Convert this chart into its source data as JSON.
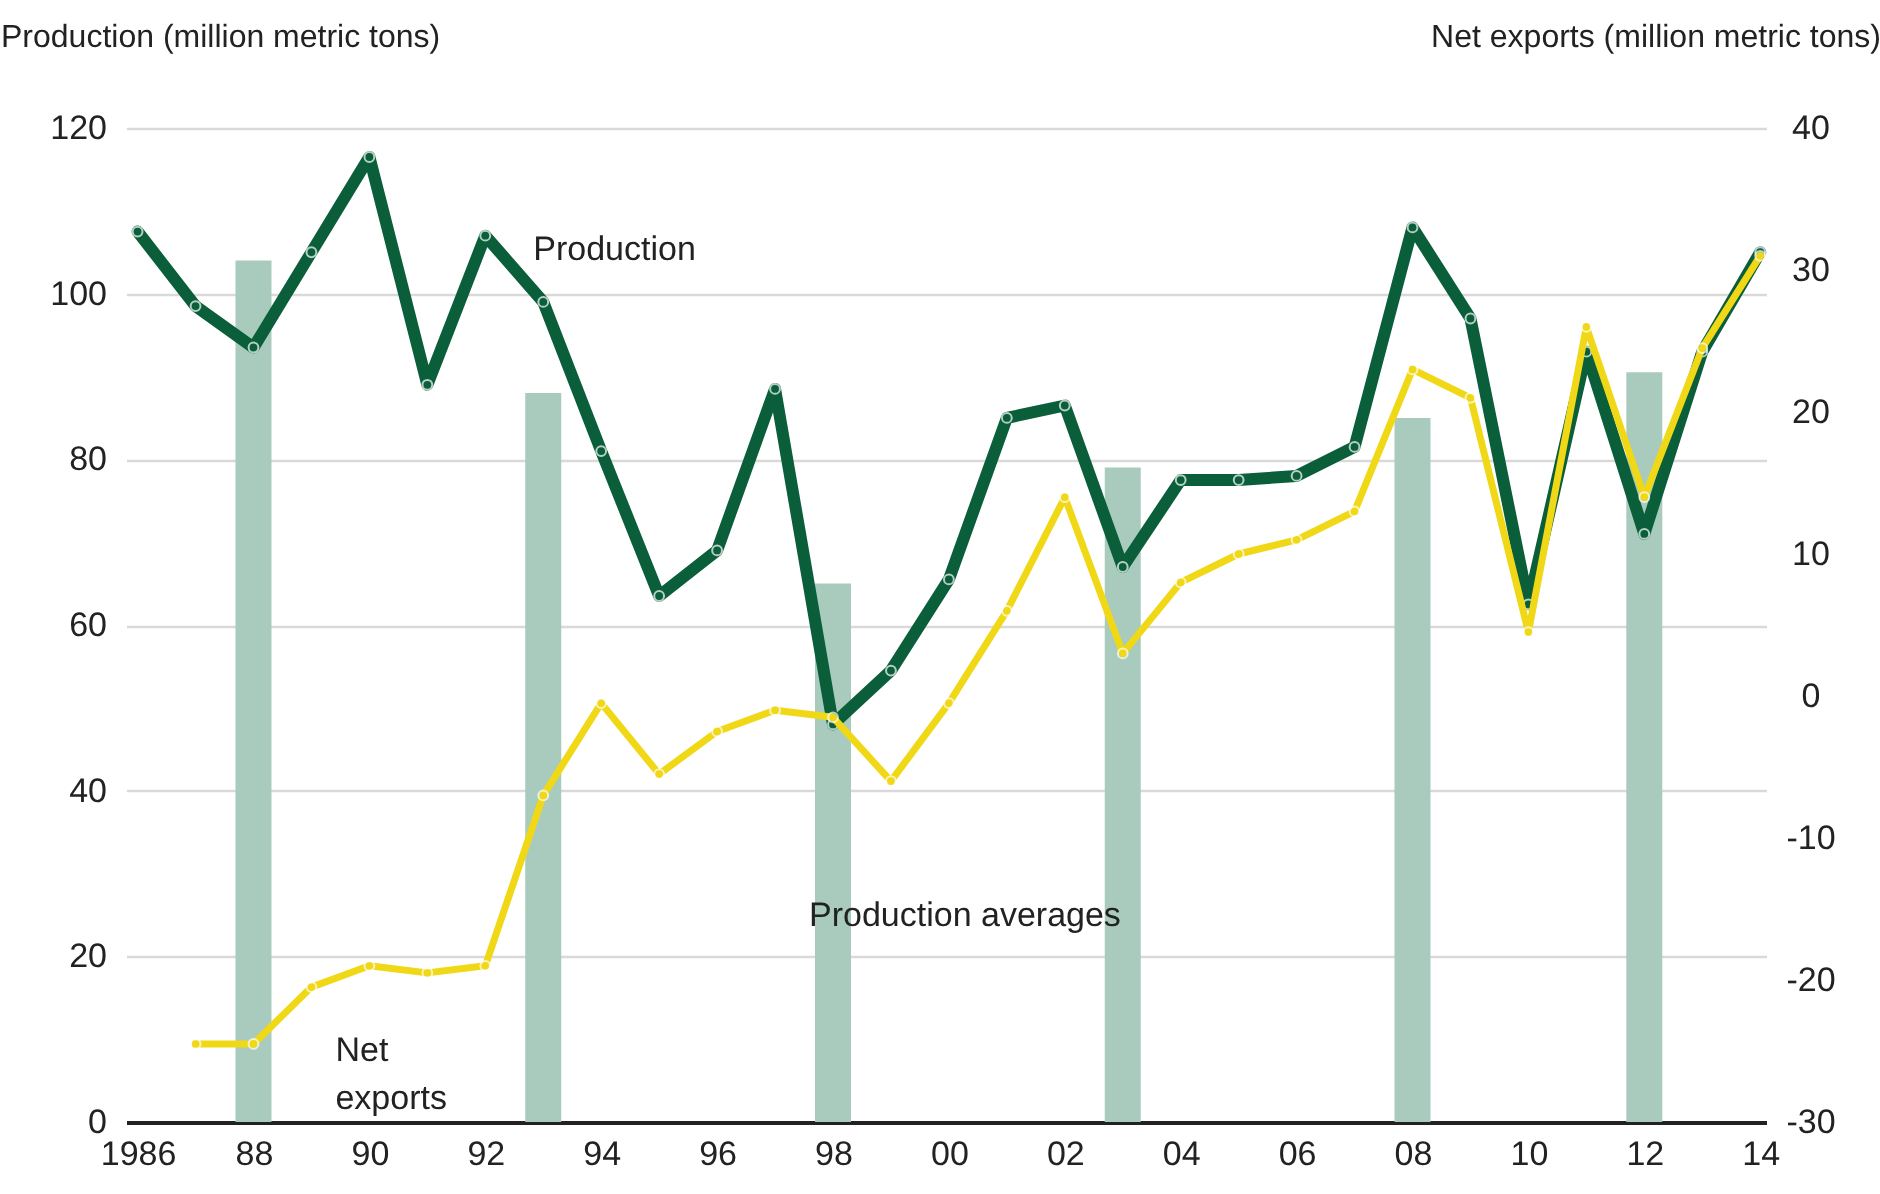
{
  "chart_data": {
    "type": "line",
    "ylabel": "Production (million metric tons)",
    "y2label": "Net exports (million metric tons)",
    "xlim": [
      1985.8,
      2014.1
    ],
    "xticks": [
      1986,
      {
        "value": 1988,
        "label": "88"
      },
      {
        "value": 1990,
        "label": "90"
      },
      {
        "value": 1992,
        "label": "92"
      },
      {
        "value": 1994,
        "label": "94"
      },
      {
        "value": 1996,
        "label": "96"
      },
      {
        "value": 1998,
        "label": "98"
      },
      {
        "value": 2000,
        "label": "00"
      },
      {
        "value": 2002,
        "label": "02"
      },
      {
        "value": 2004,
        "label": "04"
      },
      {
        "value": 2006,
        "label": "06"
      },
      {
        "value": 2008,
        "label": "08"
      },
      {
        "value": 2010,
        "label": "10"
      },
      {
        "value": 2012,
        "label": "12"
      },
      {
        "value": 2014,
        "label": "14"
      }
    ],
    "ylim": [
      0,
      120
    ],
    "yticks": [
      0,
      20,
      40,
      60,
      80,
      100,
      120
    ],
    "y2lim": [
      -30,
      40
    ],
    "y2ticks": [
      -30,
      -20,
      -10,
      0,
      10,
      20,
      30,
      40
    ],
    "grid": "y",
    "marker": "circle",
    "line_style": "solid",
    "series": [
      {
        "type": "bar",
        "name": "Production averages",
        "color": "#a9cbbd",
        "x": [
          1988,
          1993,
          1998,
          2003,
          2008,
          2012
        ],
        "values": [
          104,
          88,
          65,
          79,
          85,
          90.5
        ]
      },
      {
        "name": "Production",
        "color": "#0b5e3a",
        "x": [
          1986,
          1987,
          1988,
          1989,
          1990,
          1991,
          1992,
          1993,
          1994,
          1995,
          1996,
          1997,
          1998,
          1999,
          2000,
          2001,
          2002,
          2003,
          2004,
          2005,
          2006,
          2007,
          2008,
          2009,
          2010,
          2011,
          2012,
          2013,
          2014
        ],
        "values": [
          107.5,
          98.5,
          93.5,
          105,
          116.5,
          89,
          107,
          99,
          81,
          63.5,
          69,
          88.5,
          48,
          54.5,
          65.5,
          85,
          86.5,
          67,
          77.5,
          77.5,
          78,
          81.5,
          108,
          97,
          62.5,
          93,
          71,
          93,
          105
        ]
      },
      {
        "name": "Net exports",
        "axis": "y2",
        "color": "#f0d817",
        "x": [
          1987,
          1988,
          1989,
          1990,
          1991,
          1992,
          1993,
          1994,
          1995,
          1996,
          1997,
          1998,
          1999,
          2000,
          2001,
          2002,
          2003,
          2004,
          2005,
          2006,
          2007,
          2008,
          2009,
          2010,
          2011,
          2012,
          2013,
          2014
        ],
        "values": [
          -24.5,
          -24.5,
          -20.5,
          -19,
          -19.5,
          -19,
          -7,
          -0.5,
          -5.5,
          -2.5,
          -1,
          -1.5,
          -6,
          -0.5,
          6,
          14,
          3,
          8,
          10,
          11,
          13,
          23,
          21,
          4.5,
          26,
          14,
          24.5,
          31
        ]
      }
    ]
  }
}
